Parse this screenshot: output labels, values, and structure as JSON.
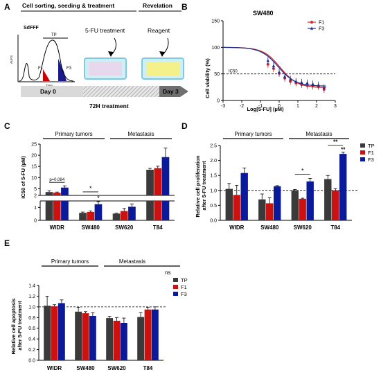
{
  "panels": {
    "A": "A",
    "B": "B",
    "C": "C",
    "D": "D",
    "E": "E"
  },
  "panelA": {
    "header1": "Cell sorting, seeding & treatment",
    "header2": "Revelation",
    "sdfff": "SdFFF",
    "tp": "TP",
    "f1": "F1",
    "f3": "F3",
    "auc": "AUFS",
    "time": "Time",
    "treatment": "5-FU treatment",
    "reagent": "Reagent",
    "day0": "Day 0",
    "day3": "Day 3",
    "duration": "72H treatment",
    "colors": {
      "tp_peak": "#cc0000",
      "f3_peak": "#1a1a8c",
      "plate_border": "#7ec8e3",
      "plate_fill1": "#e8d8ee",
      "plate_fill2": "#f4f08a"
    }
  },
  "chart_data": [
    {
      "id": "B",
      "type": "line",
      "title": "SW480",
      "xlabel": "Log[5-FU] (µM)",
      "ylabel": "Cell viability (%)",
      "xlim": [
        -3,
        3
      ],
      "ylim": [
        0,
        150
      ],
      "xticks": [
        "-3",
        "-2",
        "-1",
        "0",
        "1",
        "2",
        "3"
      ],
      "yticks": [
        "0",
        "50",
        "100",
        "150"
      ],
      "reference_label": "IC50",
      "reference_y": 50,
      "legend_position": "top-right",
      "x": [
        -0.6,
        -0.3,
        0.0,
        0.3,
        0.6,
        0.9,
        1.2,
        1.5,
        1.8,
        2.1,
        2.4
      ],
      "series": [
        {
          "name": "F1",
          "color": "#d62728",
          "ic50log": 0.06,
          "top": 100,
          "bottom": 24,
          "values": [
            68,
            60,
            51,
            42,
            36,
            33,
            30,
            28,
            27,
            26,
            21
          ]
        },
        {
          "name": "F3",
          "color": "#1f2f8f",
          "ic50log": -0.05,
          "top": 100,
          "bottom": 27,
          "values": [
            75,
            65,
            53,
            45,
            40,
            36,
            34,
            33,
            31,
            29,
            24
          ]
        }
      ]
    },
    {
      "id": "C",
      "type": "bar",
      "ylabel": "IC50 of 5-FU (µM)",
      "categories": [
        "WIDR",
        "SW480",
        "SW620",
        "T84"
      ],
      "group_labels": [
        "Primary tumors",
        "Metastasis"
      ],
      "yticks_lower": [
        "0",
        "1"
      ],
      "yticks_upper": [
        "2",
        "5",
        "10",
        "15",
        "20",
        "25"
      ],
      "series": [
        {
          "name": "TP",
          "color": "#3a3a3a",
          "values": [
            3.5,
            0.58,
            0.52,
            13.5
          ],
          "errors": [
            0.6,
            0.06,
            0.04,
            0.6
          ]
        },
        {
          "name": "F1",
          "color": "#cc1111",
          "values": [
            3.2,
            0.65,
            0.72,
            14.2
          ],
          "errors": [
            0.3,
            0.08,
            0.2,
            0.9
          ]
        },
        {
          "name": "F3",
          "color": "#0a1a99",
          "values": [
            5.5,
            1.25,
            1.05,
            19.2
          ],
          "errors": [
            0.8,
            0.2,
            0.22,
            4.0
          ]
        }
      ],
      "annotations": [
        "p=0.084",
        "*",
        "*"
      ]
    },
    {
      "id": "D",
      "type": "bar",
      "ylabel": "Relative cell proliferation after 5-FU treatment",
      "categories": [
        "WIDR",
        "SW480",
        "SW620",
        "T84"
      ],
      "group_labels": [
        "Primary tumors",
        "Metastasis"
      ],
      "ylim": [
        0,
        2.5
      ],
      "yticks": [
        "0.0",
        "0.5",
        "1.0",
        "1.5",
        "2.0",
        "2.5"
      ],
      "reference_y": 1.0,
      "legend_position": "right",
      "series": [
        {
          "name": "TP",
          "color": "#3a3a3a",
          "values": [
            1.05,
            0.7,
            1.0,
            1.38
          ],
          "errors": [
            0.18,
            0.18,
            0.03,
            0.12
          ]
        },
        {
          "name": "F1",
          "color": "#cc1111",
          "values": [
            0.85,
            0.57,
            0.72,
            1.0
          ],
          "errors": [
            0.32,
            0.18,
            0.02,
            0.06
          ]
        },
        {
          "name": "F3",
          "color": "#0a1a99",
          "values": [
            1.58,
            1.14,
            1.3,
            2.22
          ],
          "errors": [
            0.17,
            0.02,
            0.1,
            0.06
          ]
        }
      ],
      "annotations": [
        "*",
        "**",
        "**"
      ]
    },
    {
      "id": "E",
      "type": "bar",
      "ylabel": "Relative cell apoptosis after 5-FU treatment",
      "categories": [
        "WIDR",
        "SW480",
        "SW620",
        "T84"
      ],
      "group_labels": [
        "Primary tumors",
        "Metastasis"
      ],
      "ylim": [
        0,
        1.4
      ],
      "yticks": [
        "0.0",
        "0.2",
        "0.4",
        "0.6",
        "0.8",
        "1.0",
        "1.2",
        "1.4"
      ],
      "reference_y": 1.0,
      "legend_position": "right",
      "significance_label": "ns",
      "series": [
        {
          "name": "TP",
          "color": "#3a3a3a",
          "values": [
            1.02,
            0.91,
            0.79,
            0.81
          ],
          "errors": [
            0.18,
            0.08,
            0.03,
            0.08
          ]
        },
        {
          "name": "F1",
          "color": "#cc1111",
          "values": [
            1.01,
            0.88,
            0.74,
            0.95
          ],
          "errors": [
            0.03,
            0.03,
            0.06,
            0.04
          ]
        },
        {
          "name": "F3",
          "color": "#0a1a99",
          "values": [
            1.07,
            0.83,
            0.7,
            0.95
          ],
          "errors": [
            0.06,
            0.06,
            0.09,
            0.05
          ]
        }
      ]
    }
  ]
}
